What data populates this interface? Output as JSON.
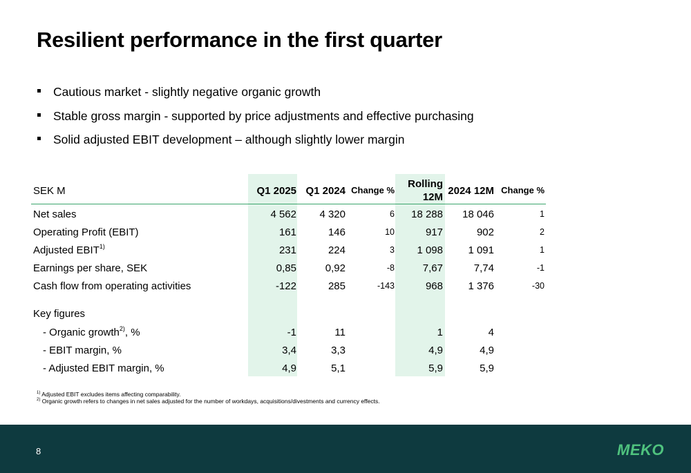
{
  "title": "Resilient performance in the first quarter",
  "bullets": [
    "Cautious market - slightly negative organic growth",
    "Stable gross margin - supported by price adjustments and effective purchasing",
    "Solid adjusted EBIT development – although slightly lower margin"
  ],
  "table": {
    "header": {
      "label": "SEK M",
      "q1_2025": "Q1 2025",
      "q1_2024": "Q1 2024",
      "change1": "Change %",
      "rolling_line1": "Rolling",
      "rolling_line2": "12M",
      "y2024": "2024 12M",
      "change2": "Change %"
    },
    "rows": [
      {
        "label": "Net sales",
        "sup": "",
        "v1": "4 562",
        "v2": "4 320",
        "v3": "6",
        "v4": "18 288",
        "v5": "18 046",
        "v6": "1"
      },
      {
        "label": "Operating Profit (EBIT)",
        "sup": "",
        "v1": "161",
        "v2": "146",
        "v3": "10",
        "v4": "917",
        "v5": "902",
        "v6": "2"
      },
      {
        "label": "Adjusted EBIT",
        "sup": "1)",
        "v1": "231",
        "v2": "224",
        "v3": "3",
        "v4": "1 098",
        "v5": "1 091",
        "v6": "1"
      },
      {
        "label": "Earnings per share, SEK",
        "sup": "",
        "v1": "0,85",
        "v2": "0,92",
        "v3": "-8",
        "v4": "7,67",
        "v5": "7,74",
        "v6": "-1"
      },
      {
        "label": "Cash flow from operating activities",
        "sup": "",
        "v1": "-122",
        "v2": "285",
        "v3": "-143",
        "v4": "968",
        "v5": "1 376",
        "v6": "-30"
      }
    ],
    "key_figures_label": "Key figures",
    "key_rows": [
      {
        "label_pre": "- Organic growth",
        "sup": "2)",
        "label_post": ", %",
        "v1": "-1",
        "v2": "11",
        "v4": "1",
        "v5": "4"
      },
      {
        "label_pre": "- EBIT margin, %",
        "sup": "",
        "label_post": "",
        "v1": "3,4",
        "v2": "3,3",
        "v4": "4,9",
        "v5": "4,9"
      },
      {
        "label_pre": "- Adjusted EBIT margin, %",
        "sup": "",
        "label_post": "",
        "v1": "4,9",
        "v2": "5,1",
        "v4": "5,9",
        "v5": "5,9"
      }
    ]
  },
  "footnotes": [
    {
      "sup": "1)",
      "text": "Adjusted EBIT excludes items affecting comparability."
    },
    {
      "sup": "2)",
      "text": "Organic growth refers to changes in net sales adjusted for the number of workdays, acquisitions/divestments and currency effects."
    }
  ],
  "footer": {
    "page_number": "8",
    "logo_text": "MEKO",
    "background_color": "#0e3a3f",
    "logo_color": "#4fc27e"
  },
  "colors": {
    "highlight_column": "#e2f4ea",
    "header_rule": "#3aa56b"
  }
}
